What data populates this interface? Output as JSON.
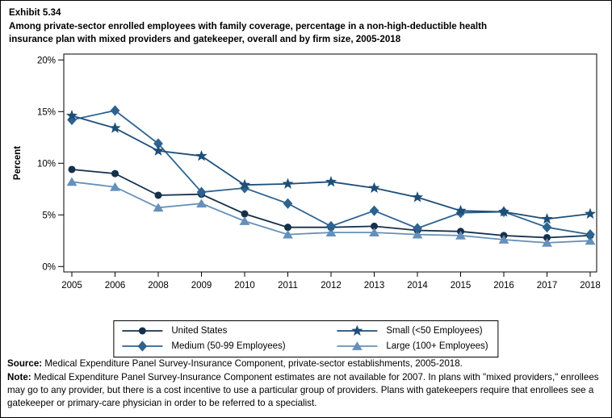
{
  "header": {
    "exhibit": "Exhibit 5.34",
    "title_line1": "Among private-sector enrolled employees with family coverage, percentage in a non-high-deductible health",
    "title_line2": "insurance plan with mixed providers and gatekeeper, overall and by firm size, 2005-2018"
  },
  "chart_data": {
    "type": "line",
    "x": [
      2005,
      2006,
      2008,
      2009,
      2010,
      2011,
      2012,
      2013,
      2014,
      2015,
      2016,
      2017,
      2018
    ],
    "x_note": "2007 estimates not available",
    "ylabel": "Percent",
    "ylim": [
      0,
      20
    ],
    "yticks": [
      "0%",
      "5%",
      "10%",
      "15%",
      "20%"
    ],
    "grid": false,
    "legend_position": "bottom",
    "series": [
      {
        "name": "United States",
        "marker": "circle",
        "color": "#15304b",
        "values": [
          9.4,
          9.0,
          6.9,
          7.0,
          5.1,
          3.8,
          3.8,
          3.9,
          3.5,
          3.4,
          3.0,
          2.8,
          3.0
        ]
      },
      {
        "name": "Small (<50 Employees)",
        "marker": "star",
        "color": "#1d4e78",
        "values": [
          14.6,
          13.4,
          11.2,
          10.7,
          7.9,
          8.0,
          8.2,
          7.6,
          6.7,
          5.4,
          5.3,
          4.6,
          5.1
        ]
      },
      {
        "name": "Medium (50-99 Employees)",
        "marker": "diamond",
        "color": "#2e6390",
        "values": [
          14.2,
          15.1,
          11.9,
          7.2,
          7.6,
          6.1,
          3.9,
          5.4,
          3.7,
          5.2,
          5.3,
          3.8,
          3.1
        ]
      },
      {
        "name": "Large (100+ Employees)",
        "marker": "triangle",
        "color": "#6690ba",
        "values": [
          8.2,
          7.7,
          5.7,
          6.1,
          4.4,
          3.1,
          3.3,
          3.3,
          3.1,
          3.0,
          2.6,
          2.3,
          2.5
        ]
      }
    ]
  },
  "footer": {
    "source_label": "Source:",
    "source_text": " Medical Expenditure Panel Survey-Insurance Component, private-sector establishments, 2005-2018.",
    "note_label": "Note:",
    "note_text": " Medical Expenditure Panel Survey-Insurance Component estimates are not available for 2007. In plans with \"mixed providers,\" enrollees may go to any provider, but there is a cost incentive to use a particular group of providers. Plans with gatekeepers require that enrollees see a gatekeeper or primary-care physician in order to be referred to a specialist."
  }
}
